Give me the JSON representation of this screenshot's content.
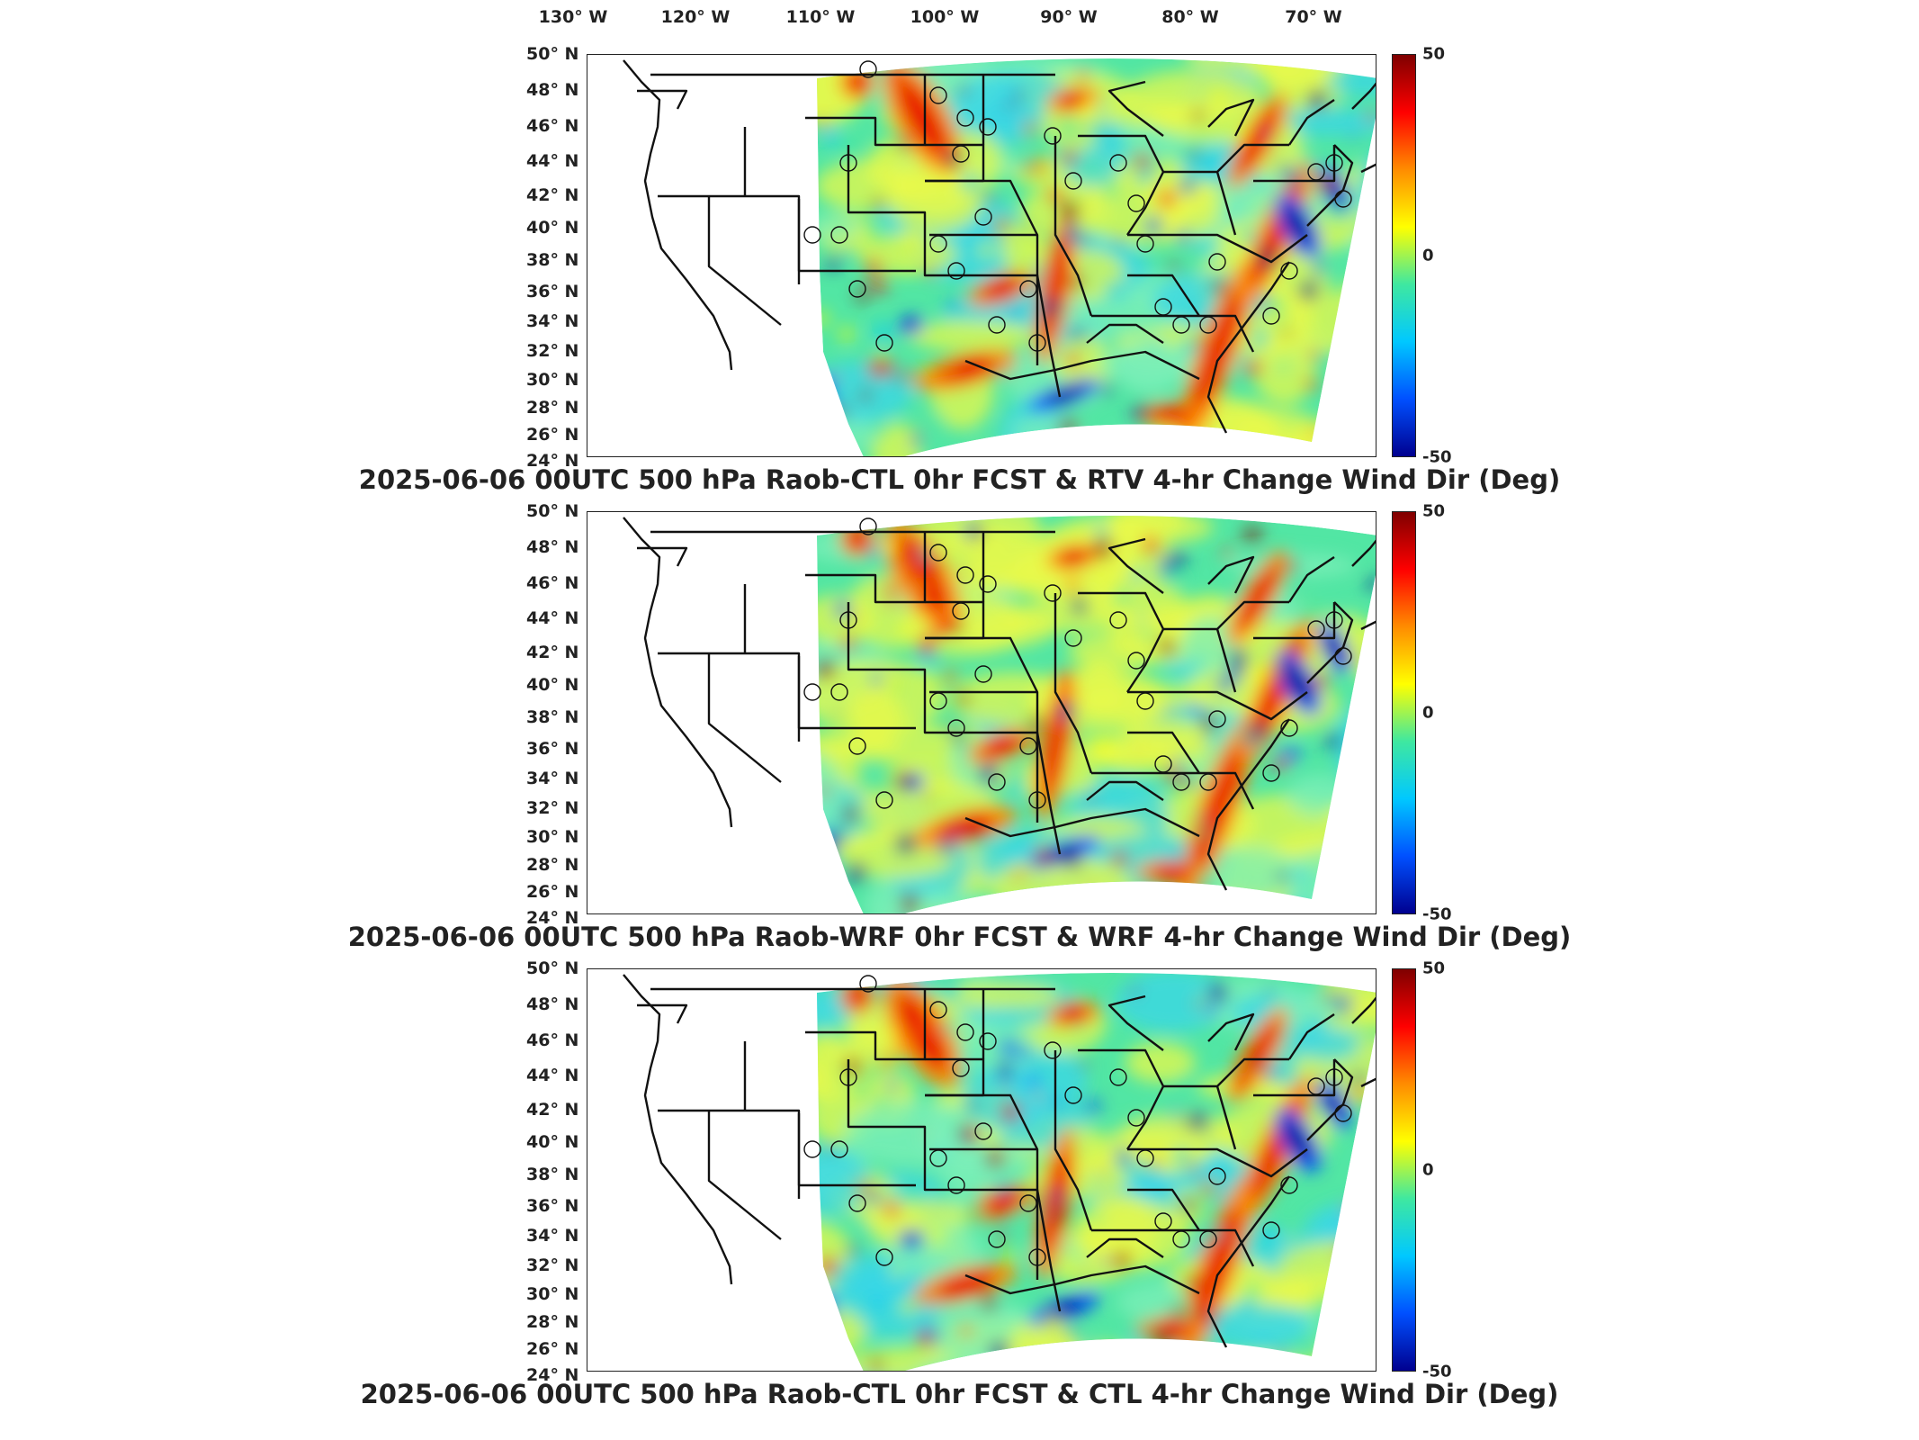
{
  "longitude_labels": [
    "130° W",
    "120° W",
    "110° W",
    "100° W",
    "90° W",
    "80° W",
    "70° W"
  ],
  "latitude_labels": [
    "50° N",
    "48° N",
    "46° N",
    "44° N",
    "42° N",
    "40° N",
    "38° N",
    "36° N",
    "34° N",
    "32° N",
    "30° N",
    "28° N",
    "26° N",
    "24° N"
  ],
  "colorbar": {
    "max_label": "50",
    "mid_label": "0",
    "min_label": "-50",
    "colors": [
      "#7f0000",
      "#ff0000",
      "#ff8c00",
      "#ffff00",
      "#3fe8a0",
      "#00c8ff",
      "#0050ff",
      "#00008f"
    ]
  },
  "panels": [
    {
      "title": "2025-06-06 00UTC 500 hPa Raob-CTL 0hr FCST & RTV 4-hr Change Wind Dir (Deg)"
    },
    {
      "title": "2025-06-06 00UTC 500 hPa Raob-WRF 0hr FCST & WRF 4-hr Change Wind Dir (Deg)"
    },
    {
      "title": "2025-06-06 00UTC 500 hPa Raob-CTL 0hr FCST & CTL 4-hr Change Wind Dir (Deg)"
    }
  ]
}
